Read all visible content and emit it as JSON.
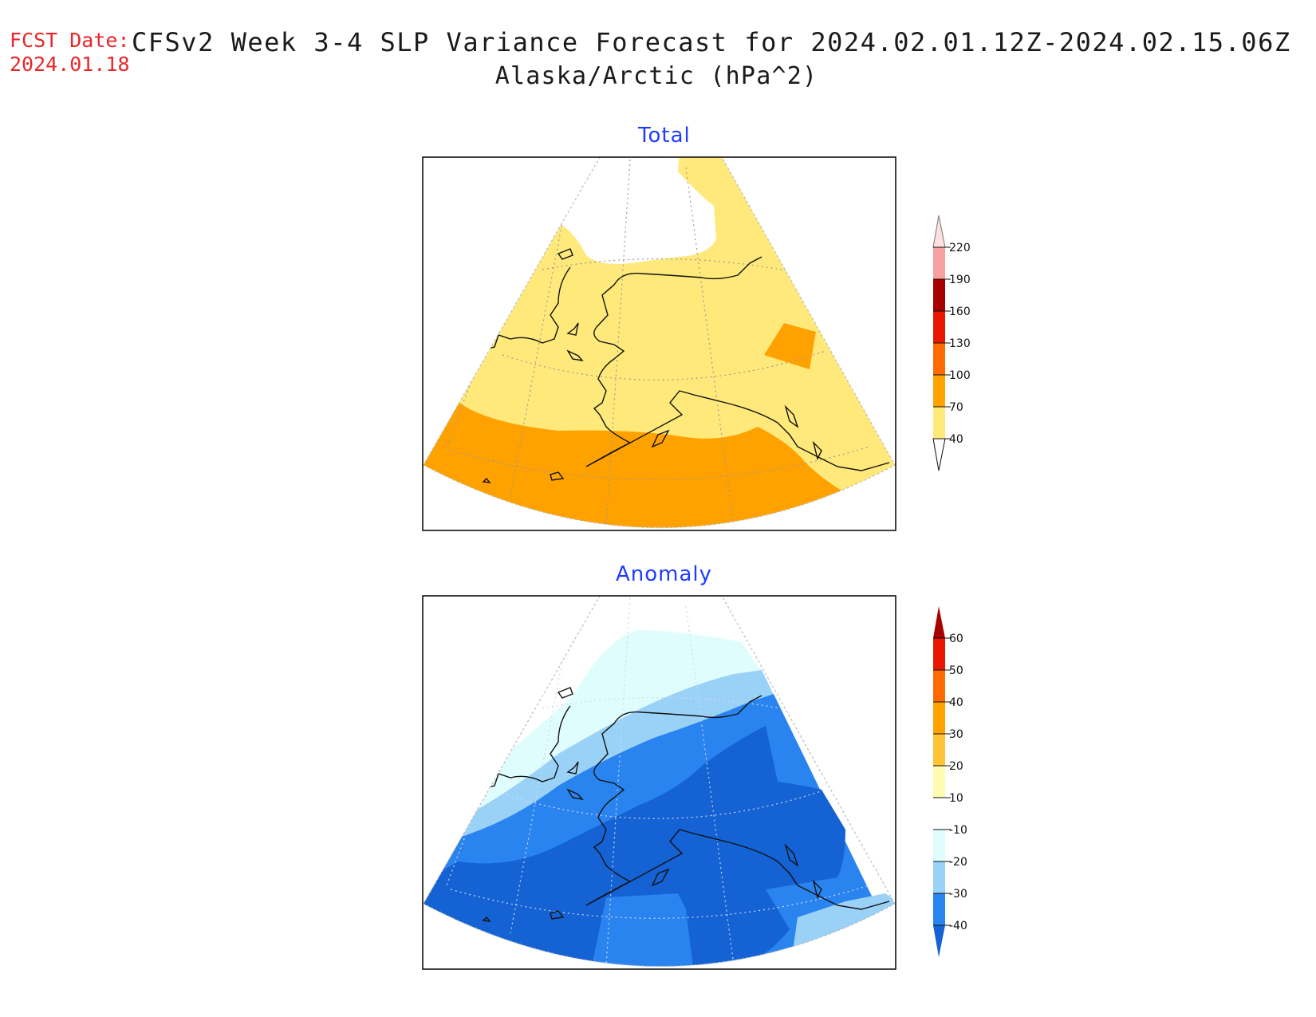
{
  "header": {
    "fcst_label": "FCST Date:",
    "fcst_date": "2024.01.18",
    "title": "CFSv2 Week 3-4 SLP Variance Forecast for 2024.02.01.12Z-2024.02.15.06Z",
    "subtitle": "Alaska/Arctic (hPa^2)"
  },
  "panels": [
    {
      "title": "Total",
      "colorbar": {
        "levels": [
          "40",
          "70",
          "100",
          "130",
          "160",
          "190",
          "220"
        ],
        "colors": [
          "#ffe97a",
          "#ffa200",
          "#ff6a00",
          "#e81800",
          "#a80000",
          "#f6a0a0",
          "#ffe0e0"
        ]
      },
      "fill_colors": {
        "low": "#ffe97a",
        "high": "#ffa200"
      }
    },
    {
      "title": "Anomaly",
      "colorbar": {
        "levels": [
          "60",
          "50",
          "40",
          "30",
          "20",
          "10",
          "-10",
          "-20",
          "-30",
          "-40"
        ],
        "colors": [
          "#a80000",
          "#e81800",
          "#ff6a00",
          "#ffa200",
          "#ffc435",
          "#fffbb0",
          "#ffffff",
          "#e0fdfd",
          "#9ad2f7",
          "#2a84ef",
          "#1462d4"
        ]
      },
      "fill_colors": {
        "m10": "#e0fdfd",
        "m20": "#9ad2f7",
        "m30": "#2a84ef",
        "m40": "#1462d4"
      }
    }
  ]
}
